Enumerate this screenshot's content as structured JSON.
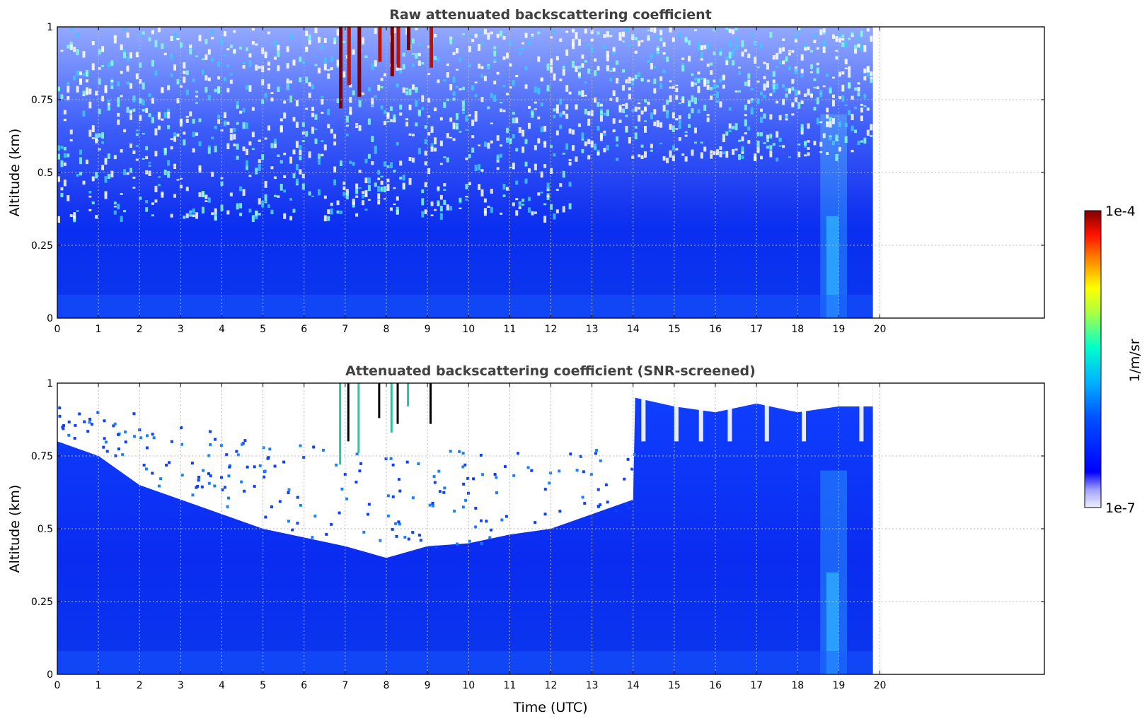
{
  "chart_data": [
    {
      "type": "heatmap",
      "title": "Raw attenuated backscattering coefficient",
      "xlabel": "",
      "ylabel": "Altitude (km)",
      "xlim": [
        0,
        24
      ],
      "ylim": [
        0,
        1
      ],
      "xticks": [
        "0",
        "1",
        "2",
        "3",
        "4",
        "5",
        "6",
        "7",
        "8",
        "9",
        "10",
        "11",
        "12",
        "13",
        "14",
        "15",
        "16",
        "17",
        "18",
        "19",
        "20"
      ],
      "yticks": [
        "0",
        "0.25",
        "0.5",
        "0.75",
        "1"
      ],
      "data_extent_x": [
        0,
        19.83
      ],
      "grid": true,
      "screened": false,
      "time_points": [
        0,
        1,
        2,
        3,
        4,
        5,
        6,
        7,
        8,
        9,
        10,
        11,
        12,
        13,
        14,
        15,
        16,
        17,
        18,
        19,
        19.83
      ],
      "blank_above_km": [
        1,
        1,
        1,
        1,
        1,
        1,
        1,
        1,
        1,
        1,
        1,
        1,
        1,
        1,
        1,
        1,
        1,
        1,
        1,
        1,
        1
      ]
    },
    {
      "type": "heatmap",
      "title": "Attenuated backscattering coefficient (SNR-screened)",
      "xlabel": "Time (UTC)",
      "ylabel": "Altitude (km)",
      "xlim": [
        0,
        24
      ],
      "ylim": [
        0,
        1
      ],
      "xticks": [
        "0",
        "1",
        "2",
        "3",
        "4",
        "5",
        "6",
        "7",
        "8",
        "9",
        "10",
        "11",
        "12",
        "13",
        "14",
        "15",
        "16",
        "17",
        "18",
        "19",
        "20"
      ],
      "yticks": [
        "0",
        "0.25",
        "0.5",
        "0.75",
        "1"
      ],
      "data_extent_x": [
        0,
        19.83
      ],
      "grid": true,
      "screened": true,
      "time_points": [
        0,
        1,
        2,
        3,
        4,
        5,
        6,
        7,
        8,
        9,
        10,
        11,
        12,
        13,
        14,
        14.05,
        15,
        16,
        17,
        18,
        19,
        19.83
      ],
      "blank_above_km": [
        0.8,
        0.75,
        0.65,
        0.6,
        0.55,
        0.5,
        0.47,
        0.44,
        0.4,
        0.44,
        0.45,
        0.48,
        0.5,
        0.55,
        0.6,
        0.95,
        0.92,
        0.9,
        0.93,
        0.9,
        0.92,
        0.92
      ]
    }
  ],
  "colorbar": {
    "label": "1/m/sr",
    "max_label": "1e-4",
    "min_label": "1e-7",
    "scale": "log",
    "range": [
      1e-07,
      0.0001
    ],
    "colors": [
      "#e8e8ff",
      "#0000ff",
      "#00aaff",
      "#00ffcc",
      "#ffff00",
      "#ff6600",
      "#ff0000",
      "#800000"
    ]
  }
}
